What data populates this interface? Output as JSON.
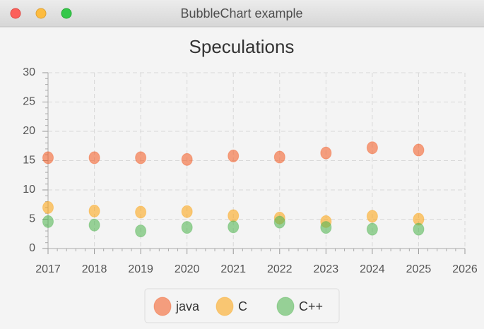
{
  "window": {
    "title": "BubbleChart example"
  },
  "chart_data": {
    "type": "bubble",
    "title": "Speculations",
    "x": [
      2017,
      2018,
      2019,
      2020,
      2021,
      2022,
      2023,
      2024,
      2025
    ],
    "series": [
      {
        "name": "java",
        "color": "#f3622d",
        "values": [
          15.5,
          15.5,
          15.5,
          15.2,
          15.8,
          15.6,
          16.3,
          17.2,
          16.8
        ]
      },
      {
        "name": "C",
        "color": "#fba71b",
        "values": [
          7.0,
          6.4,
          6.2,
          6.3,
          5.6,
          5.2,
          4.6,
          5.5,
          5.0
        ]
      },
      {
        "name": "C++",
        "color": "#57b757",
        "values": [
          4.6,
          4.0,
          3.0,
          3.6,
          3.7,
          4.5,
          3.6,
          3.3,
          3.3
        ]
      }
    ],
    "xlim": [
      2017,
      2026
    ],
    "xticks": [
      2017,
      2018,
      2019,
      2020,
      2021,
      2022,
      2023,
      2024,
      2025,
      2026
    ],
    "ylim": [
      0,
      30
    ],
    "yticks": [
      0,
      5,
      10,
      15,
      20,
      25,
      30
    ],
    "grid": true,
    "legend": "bottom"
  }
}
